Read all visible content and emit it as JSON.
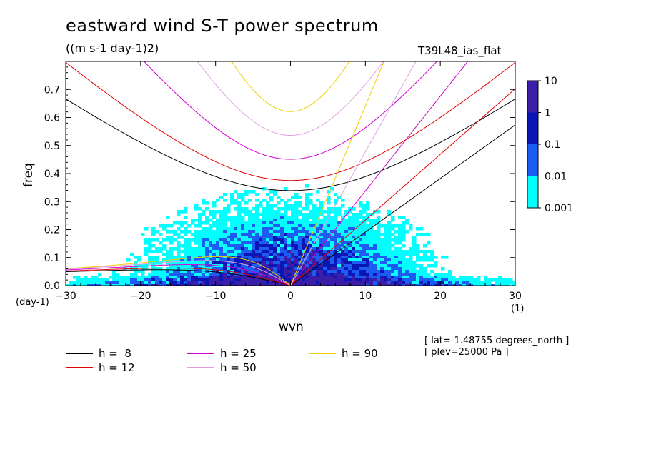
{
  "header": {
    "title": "eastward wind S-T power spectrum",
    "units": "((m s-1 day-1)2)",
    "run": "T39L48_ias_flat"
  },
  "meta": {
    "lat": "[ lat=-1.48755 degrees_north ]",
    "plev": "[ plev=25000 Pa ]"
  },
  "axes": {
    "xlabel": "wvn",
    "ylabel": "freq",
    "xunit": "(1)",
    "yunit": "(day-1)",
    "xlim": [
      -30,
      30
    ],
    "ylim": [
      0,
      0.8
    ],
    "xticks": [
      "-30",
      "-20",
      "-10",
      "0",
      "10",
      "20",
      "30"
    ],
    "yticks": [
      "0.0",
      "0.1",
      "0.2",
      "0.3",
      "0.4",
      "0.5",
      "0.6",
      "0.7"
    ]
  },
  "colorbar": {
    "labels": [
      "10",
      "1",
      "0.1",
      "0.01",
      "0.001"
    ],
    "colors": [
      "#3b1ea8",
      "#0a16b5",
      "#1c5cf2",
      "#00ffff"
    ]
  },
  "legend": [
    {
      "label": "h =  8",
      "color": "#000000"
    },
    {
      "label": "h = 12",
      "color": "#e00000"
    },
    {
      "label": "h = 25",
      "color": "#d000d0"
    },
    {
      "label": "h = 50",
      "color": "#e0a0e0"
    },
    {
      "label": "h = 90",
      "color": "#f0d000"
    }
  ],
  "chart_data": {
    "type": "heatmap",
    "title": "eastward wind S-T power spectrum",
    "subtitle": "((m s-1 day-1)2)",
    "xlabel": "wvn",
    "ylabel": "freq",
    "xlim": [
      -30,
      30
    ],
    "ylim": [
      0,
      0.8
    ],
    "levels": [
      0.001,
      0.01,
      0.1,
      1,
      10
    ],
    "dispersion_curves": [
      {
        "name": "h =  8",
        "color": "#000000",
        "equivalent_depth_m": 8
      },
      {
        "name": "h = 12",
        "color": "#e00000",
        "equivalent_depth_m": 12
      },
      {
        "name": "h = 25",
        "color": "#d000d0",
        "equivalent_depth_m": 25
      },
      {
        "name": "h = 50",
        "color": "#e0a0e0",
        "equivalent_depth_m": 50
      },
      {
        "name": "h = 90",
        "color": "#f0d000",
        "equivalent_depth_m": 90
      }
    ]
  }
}
